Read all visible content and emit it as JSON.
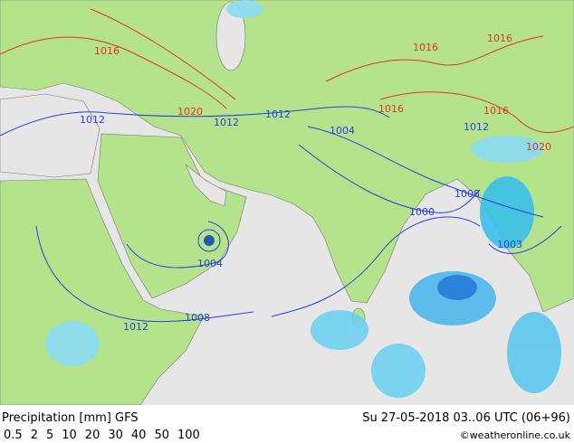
{
  "map": {
    "isobar_labels": [
      {
        "text": "1016",
        "kind": "high"
      },
      {
        "text": "1016",
        "kind": "high"
      },
      {
        "text": "1016",
        "kind": "high"
      },
      {
        "text": "1016",
        "kind": "high"
      },
      {
        "text": "1016",
        "kind": "high"
      },
      {
        "text": "1020",
        "kind": "high"
      },
      {
        "text": "1020",
        "kind": "high"
      },
      {
        "text": "1012",
        "kind": "low"
      },
      {
        "text": "1012",
        "kind": "low"
      },
      {
        "text": "1012",
        "kind": "low"
      },
      {
        "text": "1012",
        "kind": "low"
      },
      {
        "text": "1004",
        "kind": "low"
      },
      {
        "text": "1008",
        "kind": "low"
      },
      {
        "text": "1000",
        "kind": "low"
      },
      {
        "text": "1003",
        "kind": "low"
      },
      {
        "text": "1004",
        "kind": "low"
      },
      {
        "text": "1008",
        "kind": "low"
      },
      {
        "text": "1012",
        "kind": "low"
      }
    ],
    "high_color": "#e0322a",
    "low_color": "#2a3fd8"
  },
  "footer": {
    "title": "Precipitation [mm] GFS",
    "date": "Su 27-05-2018 03..06 UTC (06+96)",
    "credit": "©weatheronline.co.uk",
    "scale": [
      {
        "label": "0.5",
        "color": "#7fd8f0"
      },
      {
        "label": "2",
        "color": "#3cc0ec"
      },
      {
        "label": "5",
        "color": "#1fa0e8"
      },
      {
        "label": "10",
        "color": "#1878d8"
      },
      {
        "label": "20",
        "color": "#1448b8"
      },
      {
        "label": "30",
        "color": "#2a2a9a"
      },
      {
        "label": "40",
        "color": "#8a2ab0"
      },
      {
        "label": "50",
        "color": "#c020c0"
      },
      {
        "label": "100",
        "color": "#e020d8"
      }
    ]
  }
}
